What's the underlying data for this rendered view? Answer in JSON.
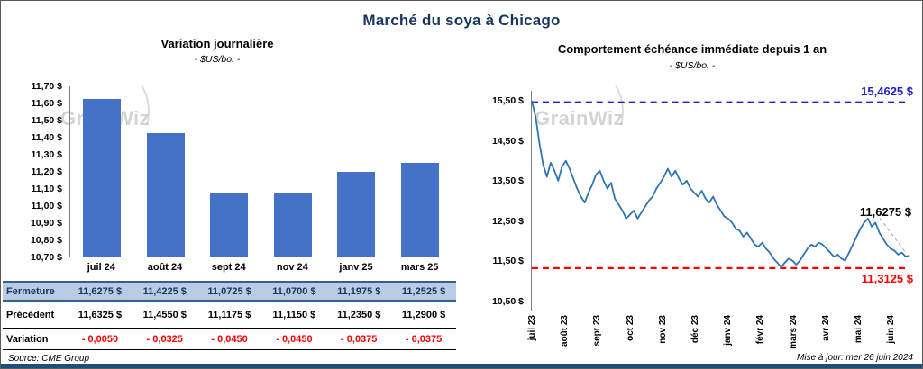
{
  "page": {
    "title": "Marché du soya à Chicago",
    "source": "Source: CME Group",
    "updated": "Mise à jour: mer 26 juin 2024",
    "watermark": "GrainWiz",
    "accent_blue": "#4472C4",
    "footer_bar_color": "#1F4E79"
  },
  "left_chart": {
    "title": "Variation  journalière",
    "subtitle": "- $US/bo. -"
  },
  "right_chart": {
    "title": "Comportement  échéance  immédiate  depuis 1 an",
    "subtitle": "- $US/bo. -",
    "max_label": "15,4625 $",
    "min_label": "11,3125 $",
    "last_label": "11,6275 $"
  },
  "table": {
    "rows": [
      {
        "label": "Fermeture",
        "values": [
          "11,6275  $",
          "11,4225  $",
          "11,0725  $",
          "11,0700  $",
          "11,1975  $",
          "11,2525  $"
        ]
      },
      {
        "label": "Précédent",
        "values": [
          "11,6325  $",
          "11,4550  $",
          "11,1175  $",
          "11,1150  $",
          "11,2350  $",
          "11,2900  $"
        ]
      },
      {
        "label": "Variation",
        "values": [
          "- 0,0050",
          "- 0,0325",
          "- 0,0450",
          "- 0,0450",
          "- 0,0375",
          "- 0,0375"
        ]
      }
    ]
  },
  "chart_data": [
    {
      "type": "bar",
      "title": "Variation journalière",
      "subtitle": "- $US/bo. -",
      "categories": [
        "juil 24",
        "août 24",
        "sept 24",
        "nov 24",
        "janv 25",
        "mars 25"
      ],
      "values": [
        11.6275,
        11.4225,
        11.0725,
        11.07,
        11.1975,
        11.2525
      ],
      "ylim": [
        10.7,
        11.7
      ],
      "yticks": [
        "11,70 $",
        "11,60 $",
        "11,50 $",
        "11,40 $",
        "11,30 $",
        "11,20 $",
        "11,10 $",
        "11,00 $",
        "10,90 $",
        "10,80 $",
        "10,70 $"
      ],
      "bar_color": "#4472C4",
      "grid": false
    },
    {
      "type": "line",
      "title": "Comportement échéance immédiate depuis 1 an",
      "subtitle": "- $US/bo. -",
      "color": "#2E74B5",
      "ylim": [
        10.25,
        15.75
      ],
      "yticks": [
        "15,50 $",
        "14,50 $",
        "13,50 $",
        "12,50 $",
        "11,50 $",
        "10,50 $"
      ],
      "ytick_values": [
        15.5,
        14.5,
        13.5,
        12.5,
        11.5,
        10.5
      ],
      "x_labels": [
        "juil 23",
        "août 23",
        "sept 23",
        "oct 23",
        "nov 23",
        "déc 23",
        "janv 24",
        "févr 24",
        "mars 24",
        "avr 24",
        "mai 24",
        "juin 24"
      ],
      "hlines": [
        {
          "value": 15.4625,
          "color": "#2222C8",
          "label": "15,4625 $",
          "name": "max-line"
        },
        {
          "value": 11.3125,
          "color": "#FF0000",
          "label": "11,3125 $",
          "name": "min-line"
        }
      ],
      "last_value": 11.6275,
      "grid": false,
      "values": [
        15.5,
        15.1,
        14.45,
        13.9,
        13.6,
        13.95,
        13.75,
        13.5,
        13.85,
        14.0,
        13.8,
        13.55,
        13.3,
        13.1,
        12.95,
        13.2,
        13.4,
        13.65,
        13.75,
        13.5,
        13.3,
        13.45,
        13.05,
        12.9,
        12.75,
        12.55,
        12.65,
        12.75,
        12.55,
        12.7,
        12.85,
        13.0,
        13.1,
        13.3,
        13.45,
        13.6,
        13.8,
        13.6,
        13.75,
        13.55,
        13.4,
        13.5,
        13.3,
        13.2,
        13.1,
        13.25,
        13.05,
        12.95,
        13.1,
        12.9,
        12.75,
        12.6,
        12.55,
        12.45,
        12.3,
        12.25,
        12.1,
        12.2,
        12.05,
        11.9,
        11.85,
        11.95,
        11.8,
        11.7,
        11.55,
        11.45,
        11.33,
        11.45,
        11.55,
        11.5,
        11.4,
        11.5,
        11.65,
        11.8,
        11.9,
        11.85,
        11.95,
        11.9,
        11.8,
        11.7,
        11.6,
        11.65,
        11.55,
        11.5,
        11.7,
        11.9,
        12.1,
        12.3,
        12.45,
        12.55,
        12.35,
        12.45,
        12.2,
        12.05,
        11.9,
        11.8,
        11.75,
        11.65,
        11.7,
        11.6,
        11.6275
      ]
    }
  ]
}
